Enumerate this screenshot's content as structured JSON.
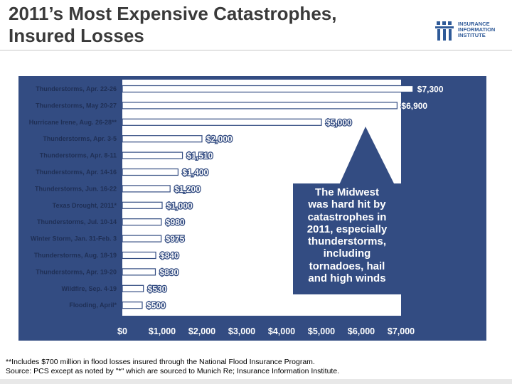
{
  "slide": {
    "title_line1": "2011’s Most Expensive Catastrophes,",
    "title_line2": "Insured Losses",
    "logo": {
      "line1": "INSURANCE",
      "line2": "INFORMATION",
      "line3": "INSTITUTE"
    },
    "footnote_line1": "**Includes $700 million in flood losses insured through the National Flood Insurance Program.",
    "footnote_line2": "Source: PCS except as noted by \"*\" which are sourced to Munich Re; Insurance Information Institute."
  },
  "colors": {
    "panel": "#334c82",
    "plot": "#ffffff",
    "bar": "#ffffff",
    "value_label": "#ffffff",
    "callout": "#334c82",
    "text_dark": "#1f2f55"
  },
  "chart_data": {
    "type": "bar",
    "orientation": "horizontal",
    "title": "2011’s Most Expensive Catastrophes, Insured Losses",
    "xlabel": "",
    "ylabel": "",
    "xlim": [
      0,
      7000
    ],
    "x_ticks": [
      0,
      1000,
      2000,
      3000,
      4000,
      5000,
      6000,
      7000
    ],
    "x_tick_labels": [
      "$0",
      "$1,000",
      "$2,000",
      "$3,000",
      "$4,000",
      "$5,000",
      "$6,000",
      "$7,000"
    ],
    "categories": [
      "Thunderstorms, Apr. 22-26",
      "Thunderstorms, May 20-27",
      "Hurricane Irene, Aug. 26-28**",
      "Thunderstorms, Apr. 3-5",
      "Thunderstorms, Apr. 8-11",
      "Thunderstorms, Apr. 14-16",
      "Thunderstorms, Jun. 16-22",
      "Texas Drought, 2011*",
      "Thunderstorms, Jul. 10-14",
      "Winter Storm, Jan. 31-Feb. 3",
      "Thunderstorms, Aug. 18-19",
      "Thunderstorms, Apr. 19-20",
      "Wildfire, Sep. 4-19",
      "Flooding, April*"
    ],
    "values": [
      7300,
      6900,
      5000,
      2000,
      1510,
      1400,
      1200,
      1000,
      980,
      975,
      840,
      830,
      530,
      500
    ],
    "value_labels": [
      "$7,300",
      "$6,900",
      "$5,000",
      "$2,000",
      "$1,510",
      "$1,400",
      "$1,200",
      "$1,000",
      "$980",
      "$975",
      "$840",
      "$830",
      "$530",
      "$500"
    ],
    "annotation": "The Midwest was hard hit by catastrophes in 2011, especially thunderstorms, including tornadoes, hail and high winds",
    "annotation_lines": [
      "The Midwest",
      "was hard hit by",
      "catastrophes in",
      "2011, especially",
      "thunderstorms,",
      "including",
      "tornadoes, hail",
      "and high winds"
    ]
  }
}
